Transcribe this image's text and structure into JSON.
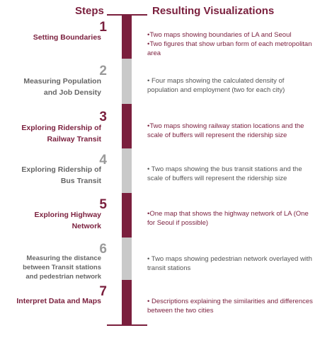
{
  "headers": {
    "steps": "Steps",
    "results": "Resulting Visualizations"
  },
  "colors": {
    "accent": "#7a1f3d",
    "gray_bar": "#c9c9c9",
    "gray_text": "#666666"
  },
  "steps": [
    {
      "number": "1",
      "label": "Setting Boundaries",
      "tone": "dark",
      "results": [
        "•Two maps showing boundaries of LA and Seoul",
        "•Two figures  that show urban form of each metropolitan area"
      ]
    },
    {
      "number": "2",
      "label": "Measuring Population and Job Density",
      "tone": "light",
      "results": [
        "• Four maps showing the calculated density of population and employment (two for each city)"
      ]
    },
    {
      "number": "3",
      "label": "Exploring Ridership of Railway Transit",
      "tone": "dark",
      "results": [
        "•Two maps showing railway station locations and the scale of buffers will represent the ridership size"
      ]
    },
    {
      "number": "4",
      "label": "Exploring Ridership of Bus Transit",
      "tone": "light",
      "results": [
        "• Two maps showing the bus transit stations and the scale of buffers will represent the ridership size"
      ]
    },
    {
      "number": "5",
      "label": "Exploring Highway Network",
      "tone": "dark",
      "results": [
        "•One map that shows the highway network of LA (One for Seoul if possible)"
      ]
    },
    {
      "number": "6",
      "label": "Measuring the distance between Transit stations and pedestrian network",
      "tone": "light",
      "results": [
        "• Two maps showing pedestrian network overlayed with transit stations"
      ]
    },
    {
      "number": "7",
      "label": "Interpret Data and Maps",
      "tone": "dark",
      "results": [
        "• Descriptions explaining the similarities and differences between the two cities"
      ]
    }
  ]
}
